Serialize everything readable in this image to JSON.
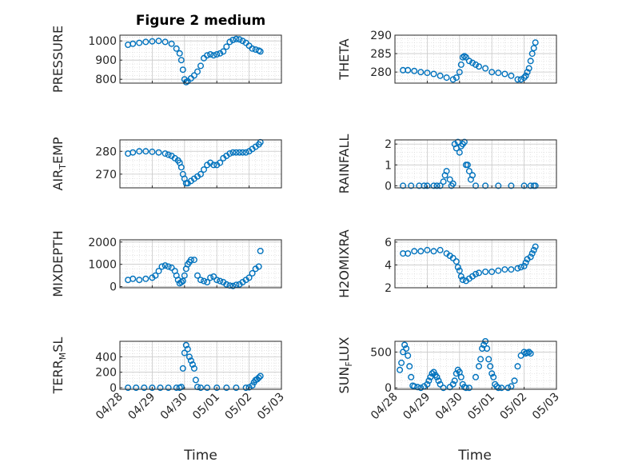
{
  "figure": {
    "title": "Figure 2 medium",
    "xlabel_left": "Time",
    "xlabel_right": "Time",
    "x_tick_labels": [
      "04/28",
      "04/29",
      "04/30",
      "05/01",
      "05/02",
      "05/03"
    ],
    "marker_color": "#0072BD"
  },
  "chart_data": [
    {
      "type": "scatter",
      "ylabel": "PRESSURE",
      "ylabel_sub": "",
      "ylabel_tail": "",
      "xlim": [
        0,
        5
      ],
      "ylim": [
        780,
        1030
      ],
      "yticks": [
        800,
        900,
        1000
      ],
      "x": [
        0.25,
        0.4,
        0.6,
        0.8,
        1.0,
        1.2,
        1.4,
        1.6,
        1.75,
        1.85,
        1.9,
        1.95,
        2.0,
        2.05,
        2.1,
        2.2,
        2.3,
        2.4,
        2.5,
        2.6,
        2.7,
        2.8,
        2.9,
        3.0,
        3.1,
        3.2,
        3.3,
        3.4,
        3.5,
        3.6,
        3.7,
        3.8,
        3.9,
        4.0,
        4.1,
        4.2,
        4.3,
        4.35
      ],
      "y": [
        980,
        985,
        990,
        995,
        998,
        1000,
        995,
        985,
        960,
        935,
        900,
        850,
        800,
        785,
        790,
        805,
        820,
        840,
        870,
        910,
        925,
        930,
        925,
        930,
        935,
        945,
        970,
        995,
        1005,
        1010,
        1008,
        1000,
        990,
        975,
        960,
        955,
        950,
        945
      ]
    },
    {
      "type": "scatter",
      "ylabel": "THETA",
      "ylabel_sub": "",
      "ylabel_tail": "",
      "xlim": [
        0,
        5
      ],
      "ylim": [
        277,
        290
      ],
      "yticks": [
        280,
        285,
        290
      ],
      "x": [
        0.25,
        0.4,
        0.6,
        0.8,
        1.0,
        1.2,
        1.4,
        1.6,
        1.8,
        1.9,
        2.0,
        2.05,
        2.1,
        2.15,
        2.2,
        2.3,
        2.4,
        2.5,
        2.6,
        2.8,
        3.0,
        3.2,
        3.4,
        3.6,
        3.8,
        3.9,
        4.0,
        4.05,
        4.1,
        4.15,
        4.2,
        4.25,
        4.3,
        4.35
      ],
      "y": [
        280.5,
        280.5,
        280.3,
        280,
        279.8,
        279.5,
        279,
        278.5,
        278,
        278.5,
        280,
        282,
        284,
        284.3,
        284,
        283,
        282.5,
        282,
        281.5,
        281,
        280,
        279.8,
        279.5,
        279,
        278,
        278,
        278.5,
        279,
        280,
        281,
        283,
        285,
        286.5,
        288
      ]
    },
    {
      "type": "scatter",
      "ylabel": "AIR",
      "ylabel_sub": "T",
      "ylabel_tail": "EMP",
      "xlim": [
        0,
        5
      ],
      "ylim": [
        264,
        285
      ],
      "yticks": [
        270,
        280
      ],
      "x": [
        0.25,
        0.4,
        0.6,
        0.8,
        1.0,
        1.2,
        1.4,
        1.5,
        1.6,
        1.7,
        1.8,
        1.85,
        1.9,
        1.95,
        2.0,
        2.05,
        2.1,
        2.2,
        2.3,
        2.4,
        2.5,
        2.6,
        2.7,
        2.8,
        2.9,
        3.0,
        3.1,
        3.2,
        3.3,
        3.4,
        3.5,
        3.6,
        3.7,
        3.8,
        3.9,
        4.0,
        4.1,
        4.2,
        4.3,
        4.35
      ],
      "y": [
        279,
        279.5,
        280,
        280,
        279.8,
        279.5,
        279,
        278.5,
        278,
        277,
        276,
        275,
        273,
        270,
        268,
        266,
        266,
        267,
        268,
        269,
        270,
        272,
        274,
        275,
        274,
        274,
        275,
        277,
        278,
        279,
        279.5,
        279.5,
        279.5,
        279.5,
        279.5,
        280,
        281,
        282,
        283,
        284
      ]
    },
    {
      "type": "scatter",
      "ylabel": "RAINFALL",
      "ylabel_sub": "",
      "ylabel_tail": "",
      "xlim": [
        0,
        5
      ],
      "ylim": [
        -0.1,
        2.2
      ],
      "yticks": [
        0,
        1,
        2
      ],
      "x": [
        0.25,
        0.5,
        0.75,
        0.9,
        1.0,
        1.2,
        1.3,
        1.4,
        1.5,
        1.55,
        1.6,
        1.7,
        1.75,
        1.8,
        1.85,
        1.9,
        1.95,
        2.0,
        2.05,
        2.1,
        2.15,
        2.2,
        2.25,
        2.3,
        2.35,
        2.4,
        2.5,
        2.8,
        3.2,
        3.6,
        4.0,
        4.2,
        4.3,
        4.35
      ],
      "y": [
        0,
        0,
        0,
        0,
        0,
        0,
        0,
        0,
        0.2,
        0.5,
        0.7,
        0.3,
        0,
        0.1,
        2.0,
        1.8,
        2.1,
        1.6,
        1.9,
        2.0,
        2.1,
        1.0,
        1.0,
        0.7,
        0.3,
        0.5,
        0,
        0,
        0,
        0,
        0,
        0,
        0,
        0
      ]
    },
    {
      "type": "scatter",
      "ylabel": "MIXDEPTH",
      "ylabel_sub": "",
      "ylabel_tail": "",
      "xlim": [
        0,
        5
      ],
      "ylim": [
        -50,
        2100
      ],
      "yticks": [
        0,
        1000,
        2000
      ],
      "x": [
        0.25,
        0.4,
        0.6,
        0.8,
        1.0,
        1.1,
        1.2,
        1.3,
        1.4,
        1.5,
        1.6,
        1.7,
        1.75,
        1.8,
        1.85,
        1.9,
        1.95,
        2.0,
        2.05,
        2.1,
        2.15,
        2.2,
        2.3,
        2.4,
        2.5,
        2.6,
        2.7,
        2.8,
        2.9,
        3.0,
        3.1,
        3.2,
        3.3,
        3.4,
        3.5,
        3.6,
        3.7,
        3.8,
        3.9,
        4.0,
        4.1,
        4.2,
        4.3,
        4.35
      ],
      "y": [
        300,
        350,
        300,
        350,
        400,
        500,
        700,
        900,
        950,
        900,
        850,
        700,
        500,
        300,
        150,
        200,
        250,
        500,
        800,
        1000,
        1100,
        1200,
        1200,
        500,
        300,
        250,
        200,
        400,
        450,
        300,
        250,
        200,
        100,
        50,
        30,
        80,
        100,
        200,
        300,
        400,
        600,
        800,
        900,
        1600
      ]
    },
    {
      "type": "scatter",
      "ylabel": "H2OMIXRA",
      "ylabel_sub": "",
      "ylabel_tail": "",
      "xlim": [
        0,
        5
      ],
      "ylim": [
        2,
        6.2
      ],
      "yticks": [
        2,
        4,
        6
      ],
      "x": [
        0.25,
        0.4,
        0.6,
        0.8,
        1.0,
        1.2,
        1.4,
        1.6,
        1.7,
        1.8,
        1.9,
        1.95,
        2.0,
        2.05,
        2.1,
        2.2,
        2.3,
        2.4,
        2.5,
        2.6,
        2.8,
        3.0,
        3.2,
        3.4,
        3.6,
        3.8,
        3.9,
        4.0,
        4.05,
        4.1,
        4.2,
        4.25,
        4.3,
        4.35
      ],
      "y": [
        5,
        5,
        5.2,
        5.2,
        5.3,
        5.2,
        5.3,
        5,
        4.8,
        4.6,
        4.3,
        3.8,
        3.5,
        3,
        2.7,
        2.6,
        2.8,
        3,
        3.2,
        3.3,
        3.4,
        3.4,
        3.5,
        3.6,
        3.6,
        3.7,
        3.8,
        3.9,
        4.2,
        4.5,
        4.7,
        5,
        5.3,
        5.6
      ]
    },
    {
      "type": "scatter",
      "ylabel": "TERR",
      "ylabel_sub": "M",
      "ylabel_tail": "SL",
      "xlim": [
        0,
        5
      ],
      "ylim": [
        -20,
        600
      ],
      "yticks": [
        0,
        200,
        400
      ],
      "x": [
        0.25,
        0.5,
        0.75,
        1.0,
        1.25,
        1.5,
        1.75,
        1.85,
        1.9,
        1.95,
        2.0,
        2.05,
        2.1,
        2.15,
        2.2,
        2.25,
        2.3,
        2.35,
        2.4,
        2.5,
        2.7,
        3.0,
        3.3,
        3.6,
        3.9,
        4.0,
        4.1,
        4.15,
        4.2,
        4.25,
        4.3,
        4.35
      ],
      "y": [
        0,
        0,
        0,
        0,
        0,
        0,
        0,
        0,
        10,
        250,
        450,
        550,
        500,
        400,
        350,
        300,
        250,
        100,
        10,
        0,
        0,
        0,
        0,
        0,
        0,
        5,
        30,
        70,
        100,
        110,
        130,
        150
      ]
    },
    {
      "type": "scatter",
      "ylabel": "SUN",
      "ylabel_sub": "F",
      "ylabel_tail": "LUX",
      "xlim": [
        0,
        5
      ],
      "ylim": [
        -20,
        650
      ],
      "yticks": [
        0,
        500
      ],
      "x": [
        0.15,
        0.2,
        0.25,
        0.3,
        0.35,
        0.4,
        0.45,
        0.5,
        0.55,
        0.6,
        0.7,
        0.8,
        0.9,
        1.0,
        1.05,
        1.1,
        1.15,
        1.2,
        1.25,
        1.3,
        1.35,
        1.4,
        1.5,
        1.7,
        1.8,
        1.85,
        1.9,
        1.95,
        2.0,
        2.05,
        2.1,
        2.15,
        2.2,
        2.3,
        2.5,
        2.6,
        2.65,
        2.7,
        2.75,
        2.8,
        2.85,
        2.9,
        2.95,
        3.0,
        3.05,
        3.1,
        3.15,
        3.2,
        3.3,
        3.5,
        3.6,
        3.7,
        3.8,
        3.9,
        4.0,
        4.05,
        4.1,
        4.15,
        4.2
      ],
      "y": [
        250,
        350,
        500,
        600,
        550,
        450,
        300,
        150,
        30,
        20,
        10,
        0,
        20,
        50,
        100,
        150,
        200,
        220,
        180,
        150,
        100,
        50,
        0,
        10,
        50,
        100,
        200,
        250,
        220,
        150,
        50,
        10,
        0,
        0,
        150,
        300,
        400,
        550,
        600,
        650,
        550,
        400,
        300,
        200,
        150,
        50,
        20,
        0,
        0,
        0,
        20,
        100,
        300,
        450,
        500,
        480,
        490,
        500,
        480
      ]
    }
  ]
}
